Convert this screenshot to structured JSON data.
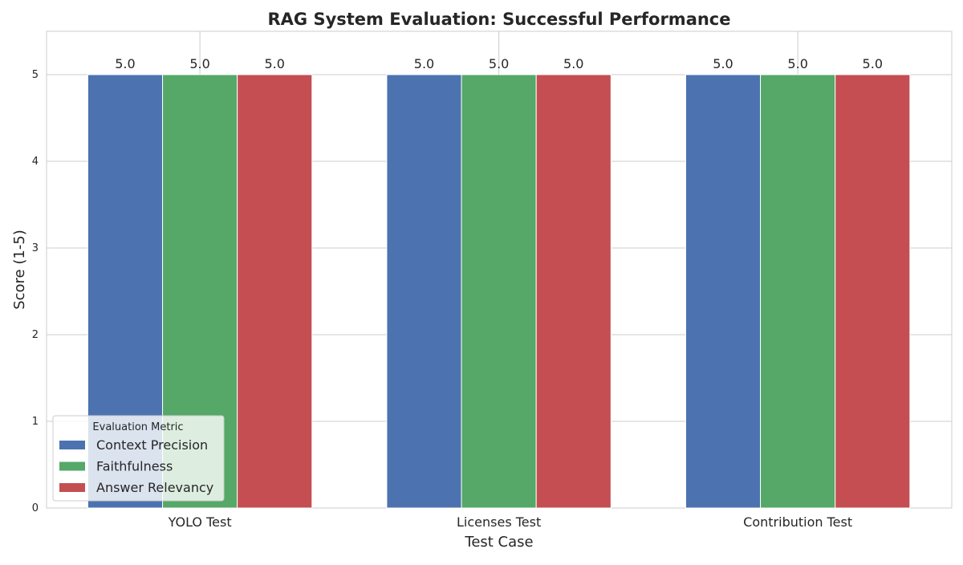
{
  "chart_data": {
    "type": "bar",
    "title": "RAG System Evaluation: Successful Performance",
    "xlabel": "Test Case",
    "ylabel": "Score (1-5)",
    "categories": [
      "YOLO Test",
      "Licenses Test",
      "Contribution Test"
    ],
    "series": [
      {
        "name": "Context Precision",
        "values": [
          5.0,
          5.0,
          5.0
        ],
        "color": "#4c72b0"
      },
      {
        "name": "Faithfulness",
        "values": [
          5.0,
          5.0,
          5.0
        ],
        "color": "#55a868"
      },
      {
        "name": "Answer Relevancy",
        "values": [
          5.0,
          5.0,
          5.0
        ],
        "color": "#c44e52"
      }
    ],
    "yticks": [
      0,
      1,
      2,
      3,
      4,
      5
    ],
    "ylim": [
      0,
      5.5
    ],
    "grid": true,
    "legend": {
      "title": "Evaluation Metric",
      "placement": "lower-left"
    },
    "data_labels": true
  }
}
